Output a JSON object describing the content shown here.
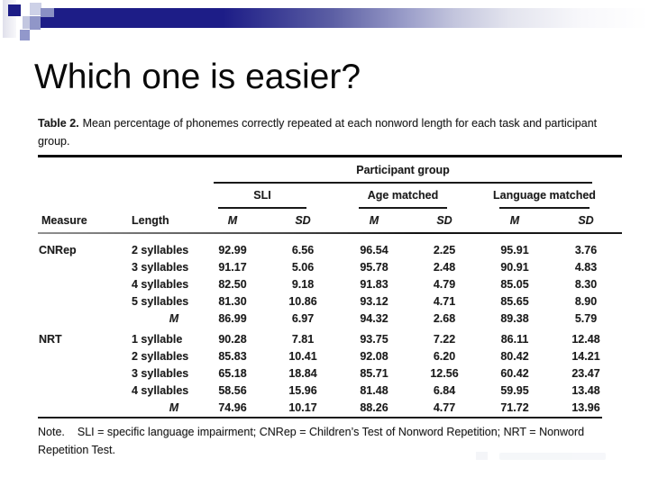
{
  "slide": {
    "title": "Which one is easier?"
  },
  "table": {
    "caption_label": "Table 2.",
    "caption_text": "Mean percentage of phonemes correctly repeated at each nonword length for each task and participant group.",
    "participant_group_header": "Participant group",
    "column_groups": [
      "SLI",
      "Age matched",
      "Language matched"
    ],
    "columns": {
      "measure": "Measure",
      "length": "Length",
      "m": "M",
      "sd": "SD"
    },
    "note_label": "Note.",
    "note_text": "SLI = specific language impairment; CNRep = Children’s Test of Nonword Repetition; NRT = Nonword Repetition Test."
  },
  "chart_data": {
    "type": "table",
    "title": "Table 2. Mean percentage of phonemes correctly repeated at each nonword length for each task and participant group.",
    "column_groups": [
      "SLI",
      "Age matched",
      "Language matched"
    ],
    "columns": [
      "Measure",
      "Length",
      "SLI M",
      "SLI SD",
      "Age matched M",
      "Age matched SD",
      "Language matched M",
      "Language matched SD"
    ],
    "rows": [
      [
        "CNRep",
        "2 syllables",
        "92.99",
        "6.56",
        "96.54",
        "2.25",
        "95.91",
        "3.76"
      ],
      [
        "",
        "3 syllables",
        "91.17",
        "5.06",
        "95.78",
        "2.48",
        "90.91",
        "4.83"
      ],
      [
        "",
        "4 syllables",
        "82.50",
        "9.18",
        "91.83",
        "4.79",
        "85.05",
        "8.30"
      ],
      [
        "",
        "5 syllables",
        "81.30",
        "10.86",
        "93.12",
        "4.71",
        "85.65",
        "8.90"
      ],
      [
        "",
        "M",
        "86.99",
        "6.97",
        "94.32",
        "2.68",
        "89.38",
        "5.79"
      ],
      [
        "NRT",
        "1 syllable",
        "90.28",
        "7.81",
        "93.75",
        "7.22",
        "86.11",
        "12.48"
      ],
      [
        "",
        "2 syllables",
        "85.83",
        "10.41",
        "92.08",
        "6.20",
        "80.42",
        "14.21"
      ],
      [
        "",
        "3 syllables",
        "65.18",
        "18.84",
        "85.71",
        "12.56",
        "60.42",
        "23.47"
      ],
      [
        "",
        "4 syllables",
        "58.56",
        "15.96",
        "81.48",
        "6.84",
        "59.95",
        "13.48"
      ],
      [
        "",
        "M",
        "74.96",
        "10.17",
        "88.26",
        "4.77",
        "71.72",
        "13.96"
      ]
    ],
    "note": "SLI = specific language impairment; CNRep = Children’s Test of Nonword Repetition; NRT = Nonword Repetition Test."
  }
}
